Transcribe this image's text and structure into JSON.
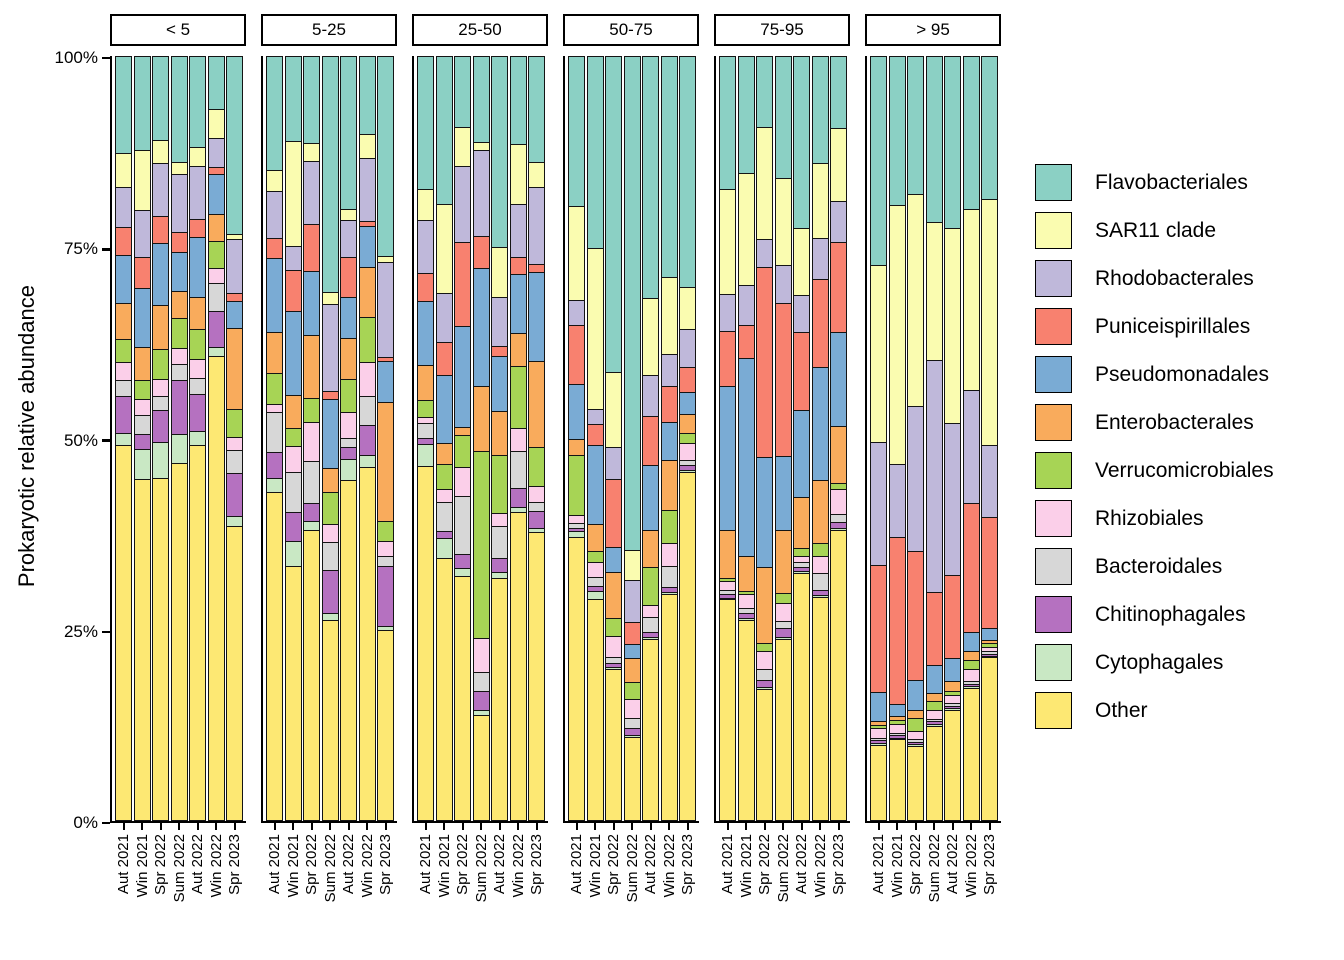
{
  "chart_data": {
    "type": "bar",
    "stacked": true,
    "orientation": "vertical",
    "units": "%",
    "ylabel": "Prokaryotic relative abundance",
    "ylim": [
      0,
      100
    ],
    "grid": false,
    "legend_position": "right",
    "yticks": [
      {
        "label": "100%",
        "value": 100
      },
      {
        "label": "75%",
        "value": 75
      },
      {
        "label": "50%",
        "value": 50
      },
      {
        "label": "25%",
        "value": 25
      },
      {
        "label": "0%",
        "value": 0
      }
    ],
    "categories": [
      "Aut 2021",
      "Win 2021",
      "Spr 2022",
      "Sum 2022",
      "Aut 2022",
      "Win 2022",
      "Spr 2023"
    ],
    "taxa": [
      {
        "name": "Flavobacteriales",
        "color": "#8bd0c4"
      },
      {
        "name": "SAR11 clade",
        "color": "#fafcb0"
      },
      {
        "name": "Rhodobacterales",
        "color": "#bfb8da"
      },
      {
        "name": "Puniceispirillales",
        "color": "#f8816f"
      },
      {
        "name": "Pseudomonadales",
        "color": "#7aabd4"
      },
      {
        "name": "Enterobacterales",
        "color": "#f9ab5c"
      },
      {
        "name": "Verrucomicrobiales",
        "color": "#a7d455"
      },
      {
        "name": "Rhizobiales",
        "color": "#fbcfe9"
      },
      {
        "name": "Bacteroidales",
        "color": "#d7d7d7"
      },
      {
        "name": "Chitinophagales",
        "color": "#b571c0"
      },
      {
        "name": "Cytophagales",
        "color": "#c9e8c4"
      },
      {
        "name": "Other",
        "color": "#fde873"
      }
    ],
    "panels": [
      {
        "label": "< 5",
        "bars": [
          [
            12.8,
            4.3,
            5.3,
            3.5,
            6.3,
            4.6,
            3.0,
            2.2,
            2.0,
            4.8,
            1.4,
            49.8
          ],
          [
            12.3,
            7.9,
            6.1,
            4.0,
            7.7,
            4.3,
            2.4,
            2.0,
            2.4,
            1.8,
            3.9,
            45.2
          ],
          [
            11.0,
            2.9,
            7.0,
            3.5,
            8.0,
            5.7,
            3.9,
            2.2,
            1.7,
            4.1,
            4.6,
            45.4
          ],
          [
            14.0,
            1.4,
            7.6,
            2.5,
            5.1,
            3.5,
            3.8,
            2.0,
            2.0,
            7.0,
            3.7,
            47.4
          ],
          [
            12.0,
            2.3,
            7.0,
            2.3,
            7.8,
            4.1,
            3.9,
            2.4,
            2.0,
            4.8,
            1.6,
            49.8
          ],
          [
            6.9,
            3.7,
            3.7,
            0.9,
            5.1,
            3.5,
            3.5,
            1.8,
            3.6,
            4.6,
            1.1,
            61.6
          ],
          [
            23.5,
            0.6,
            7.0,
            1.0,
            3.4,
            10.6,
            3.6,
            1.6,
            3.0,
            5.6,
            1.1,
            39.0
          ]
        ]
      },
      {
        "label": "5-25",
        "bars": [
          [
            15.0,
            2.7,
            6.1,
            2.5,
            9.7,
            5.3,
            4.0,
            1.0,
            5.2,
            3.3,
            1.7,
            43.5
          ],
          [
            11.2,
            13.8,
            3.1,
            5.3,
            11.0,
            4.3,
            2.2,
            3.4,
            5.2,
            3.6,
            3.3,
            33.6
          ],
          [
            11.5,
            2.2,
            8.3,
            6.1,
            8.3,
            8.3,
            3.0,
            5.1,
            5.5,
            2.2,
            1.0,
            38.5
          ],
          [
            31.3,
            1.4,
            11.4,
            1.0,
            9.0,
            3.1,
            4.1,
            2.2,
            3.6,
            5.7,
            0.8,
            26.4
          ],
          [
            20.2,
            1.3,
            4.8,
            5.2,
            5.3,
            5.4,
            4.2,
            3.3,
            1.1,
            1.5,
            2.6,
            45.1
          ],
          [
            10.2,
            3.1,
            8.2,
            0.6,
            5.3,
            6.5,
            5.8,
            4.4,
            3.8,
            3.8,
            1.5,
            46.8
          ],
          [
            26.4,
            0.7,
            12.5,
            0.4,
            5.3,
            15.8,
            2.4,
            1.9,
            1.2,
            7.8,
            0.5,
            25.1
          ]
        ]
      },
      {
        "label": "25-50",
        "bars": [
          [
            17.5,
            4.0,
            7.0,
            3.6,
            8.3,
            4.5,
            2.2,
            0.6,
            1.9,
            0.7,
            2.8,
            46.9
          ],
          [
            19.6,
            11.7,
            6.3,
            4.3,
            8.9,
            2.7,
            3.1,
            1.6,
            3.8,
            0.8,
            2.5,
            34.7
          ],
          [
            9.3,
            5.0,
            10.0,
            11.1,
            13.3,
            0.9,
            4.1,
            3.8,
            7.5,
            1.8,
            0.9,
            32.3
          ],
          [
            11.3,
            1.0,
            11.3,
            4.0,
            15.6,
            8.5,
            24.8,
            4.3,
            2.4,
            2.4,
            0.6,
            13.8
          ],
          [
            25.3,
            6.5,
            6.3,
            1.3,
            7.2,
            5.7,
            7.6,
            1.6,
            4.1,
            1.7,
            0.7,
            32.0
          ],
          [
            11.6,
            7.8,
            6.9,
            2.2,
            7.7,
            4.2,
            8.2,
            2.9,
            4.7,
            2.5,
            0.5,
            40.8
          ],
          [
            14.0,
            3.2,
            10.0,
            1.0,
            11.7,
            11.3,
            5.0,
            2.1,
            1.0,
            2.2,
            0.3,
            38.2
          ]
        ]
      },
      {
        "label": "50-75",
        "bars": [
          [
            19.8,
            12.4,
            3.2,
            7.7,
            7.2,
            2.0,
            7.8,
            1.0,
            0.5,
            0.3,
            0.6,
            37.5
          ],
          [
            25.4,
            21.3,
            1.9,
            2.6,
            10.4,
            3.4,
            1.3,
            1.9,
            1.1,
            0.5,
            0.9,
            29.3
          ],
          [
            41.9,
            9.8,
            4.2,
            8.9,
            3.2,
            6.0,
            2.2,
            2.7,
            0.6,
            0.4,
            0.2,
            19.9
          ],
          [
            65.5,
            3.9,
            5.4,
            2.9,
            1.7,
            3.1,
            2.1,
            2.3,
            1.2,
            0.9,
            0.1,
            10.9
          ],
          [
            32.0,
            10.2,
            5.3,
            6.4,
            8.5,
            4.7,
            5.0,
            1.5,
            1.8,
            0.5,
            0.2,
            23.9
          ],
          [
            29.2,
            10.2,
            4.1,
            4.6,
            5.0,
            6.5,
            4.2,
            3.0,
            2.6,
            0.5,
            0.2,
            29.9
          ],
          [
            30.6,
            5.5,
            4.9,
            3.1,
            2.8,
            2.4,
            1.2,
            2.1,
            0.6,
            0.5,
            0.1,
            46.2
          ]
        ]
      },
      {
        "label": "75-95",
        "bars": [
          [
            17.6,
            13.8,
            4.8,
            7.1,
            19.1,
            6.2,
            0.3,
            1.1,
            0.4,
            0.3,
            0.1,
            29.2
          ],
          [
            15.4,
            14.8,
            5.2,
            4.2,
            26.2,
            4.6,
            0.2,
            1.7,
            0.6,
            0.5,
            0.1,
            26.5
          ],
          [
            9.3,
            14.8,
            3.6,
            25.1,
            14.5,
            9.9,
            1.0,
            2.3,
            1.3,
            0.8,
            0.1,
            17.3
          ],
          [
            16.1,
            11.4,
            5.0,
            20.1,
            9.8,
            8.2,
            1.2,
            2.2,
            0.9,
            1.0,
            0.1,
            24.0
          ],
          [
            22.8,
            8.7,
            4.8,
            10.3,
            11.4,
            6.6,
            1.0,
            0.6,
            0.6,
            0.4,
            0.1,
            32.7
          ],
          [
            14.1,
            9.9,
            5.2,
            11.6,
            14.9,
            8.2,
            1.7,
            2.1,
            2.1,
            0.6,
            0.1,
            29.5
          ],
          [
            9.5,
            9.5,
            5.3,
            11.9,
            12.3,
            7.5,
            0.6,
            3.3,
            0.9,
            0.7,
            0.1,
            38.4
          ]
        ]
      },
      {
        "label": "> 95",
        "bars": [
          [
            27.6,
            23.5,
            16.2,
            16.8,
            3.7,
            0.4,
            0.2,
            1.2,
            0.2,
            0.2,
            0.1,
            9.9
          ],
          [
            19.7,
            34.3,
            9.6,
            22.0,
            1.5,
            0.4,
            0.4,
            1.0,
            0.2,
            0.2,
            0.1,
            10.6
          ],
          [
            18.2,
            28.1,
            19.1,
            17.0,
            3.9,
            1.0,
            1.5,
            1.0,
            0.2,
            0.2,
            0.1,
            9.7
          ],
          [
            21.9,
            18.3,
            30.7,
            9.6,
            3.5,
            1.0,
            1.0,
            1.1,
            0.2,
            0.2,
            0.1,
            12.4
          ],
          [
            22.7,
            25.9,
            20.0,
            10.9,
            3.0,
            1.2,
            0.4,
            0.9,
            0.2,
            0.2,
            0.1,
            14.5
          ],
          [
            20.2,
            23.9,
            15.0,
            16.9,
            2.5,
            1.0,
            1.1,
            1.5,
            0.2,
            0.2,
            0.1,
            17.4
          ],
          [
            18.9,
            32.5,
            9.5,
            14.6,
            1.5,
            0.2,
            0.5,
            0.4,
            0.2,
            0.1,
            0.1,
            21.5
          ]
        ]
      }
    ]
  }
}
